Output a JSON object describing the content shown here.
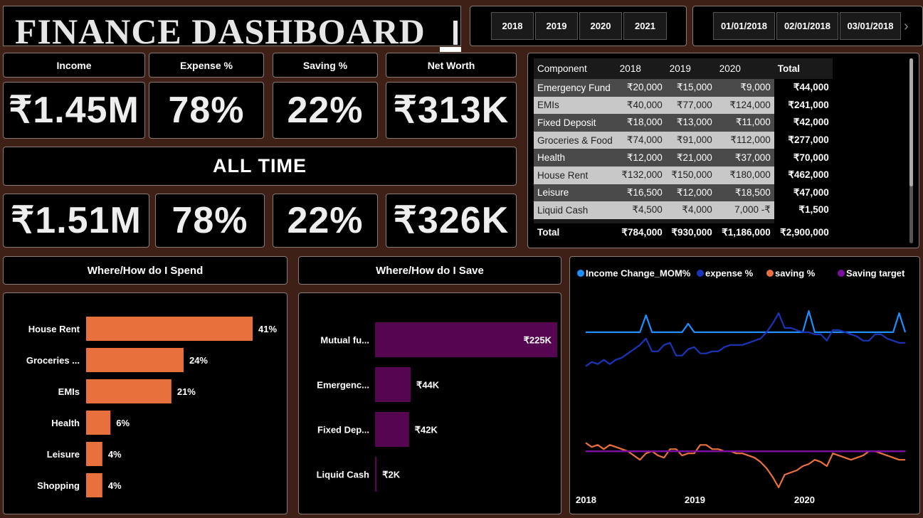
{
  "header": {
    "title": "FINANCE DASHBOARD"
  },
  "year_slicer": [
    "2018",
    "2019",
    "2020",
    "2021"
  ],
  "date_slicer": [
    "01/01/2018",
    "02/01/2018",
    "03/01/2018"
  ],
  "kpi_headers": [
    "Income",
    "Expense %",
    "Saving %",
    "Net Worth"
  ],
  "kpi_selected": [
    "₹1.45M",
    "78%",
    "22%",
    "₹313K"
  ],
  "alltime_label": "ALL TIME",
  "kpi_alltime": [
    "₹1.51M",
    "78%",
    "22%",
    "₹326K"
  ],
  "table": {
    "headers": [
      "Component",
      "2018",
      "2019",
      "2020",
      "Total"
    ],
    "rows": [
      [
        "Emergency Fund",
        "₹20,000",
        "₹15,000",
        "₹9,000",
        "₹44,000"
      ],
      [
        "EMIs",
        "₹40,000",
        "₹77,000",
        "₹124,000",
        "₹241,000"
      ],
      [
        "Fixed Deposit",
        "₹18,000",
        "₹13,000",
        "₹11,000",
        "₹42,000"
      ],
      [
        "Groceries & Food",
        "₹74,000",
        "₹91,000",
        "₹112,000",
        "₹277,000"
      ],
      [
        "Health",
        "₹12,000",
        "₹21,000",
        "₹37,000",
        "₹70,000"
      ],
      [
        "House Rent",
        "₹132,000",
        "₹150,000",
        "₹180,000",
        "₹462,000"
      ],
      [
        "Leisure",
        "₹16,500",
        "₹12,000",
        "₹18,500",
        "₹47,000"
      ],
      [
        "Liquid Cash",
        "₹4,500",
        "₹4,000",
        "7,000 -₹",
        "₹1,500"
      ]
    ],
    "total": [
      "Total",
      "₹784,000",
      "₹930,000",
      "₹1,186,000",
      "₹2,900,000"
    ]
  },
  "spend_title": "Where/How do I Spend",
  "save_title": "Where/How do I Save",
  "colors": {
    "spend_bar": "#e8703c",
    "save_bar": "#560550",
    "income": "#1e8fff",
    "expense": "#1a34b8",
    "saving": "#e8703c",
    "target": "#7a0f9e"
  },
  "chart_data": [
    {
      "type": "bar",
      "orientation": "horizontal",
      "title": "Where/How do I Spend",
      "categories": [
        "House Rent",
        "Groceries ...",
        "EMIs",
        "Health",
        "Leisure",
        "Shopping"
      ],
      "values": [
        41,
        24,
        21,
        6,
        4,
        4
      ],
      "labels": [
        "41%",
        "24%",
        "21%",
        "6%",
        "4%",
        "4%"
      ]
    },
    {
      "type": "bar",
      "orientation": "horizontal",
      "title": "Where/How do I Save",
      "categories": [
        "Mutual fu...",
        "Emergenc...",
        "Fixed Dep...",
        "Liquid Cash"
      ],
      "values": [
        225,
        44,
        42,
        2
      ],
      "labels": [
        "₹225K",
        "₹44K",
        "₹42K",
        "₹2K"
      ]
    },
    {
      "type": "line",
      "legend_position": "top-left",
      "x_ticks": [
        "2018",
        "2019",
        "2020"
      ],
      "series": [
        {
          "name": "Income Change_MOM%",
          "values": [
            0,
            0,
            0,
            0,
            0,
            0,
            0,
            0,
            0,
            0,
            8,
            0,
            0,
            0,
            0,
            0,
            0,
            4,
            0,
            0,
            0,
            0,
            0,
            0,
            0,
            0,
            0,
            0,
            0,
            0,
            0,
            0,
            0,
            0,
            0,
            0,
            0,
            10,
            0,
            0,
            0,
            0,
            0,
            0,
            0,
            0,
            0,
            0,
            0,
            0,
            0,
            0,
            9,
            0
          ]
        },
        {
          "name": "expense %",
          "values": [
            -16,
            -14,
            -15,
            -13,
            -15,
            -13,
            -12,
            -10,
            -8,
            -6,
            -3,
            -9,
            -9,
            -6,
            -5,
            -11,
            -11,
            -8,
            -7,
            -10,
            -10,
            -9,
            -9,
            -7,
            -6,
            -6,
            -6,
            -5,
            -4,
            -3,
            0,
            4,
            9,
            2,
            2,
            1,
            0,
            0,
            -1,
            -1,
            -4,
            1,
            1,
            0,
            -1,
            -2,
            -4,
            -4,
            -1,
            -1,
            -3,
            -4,
            -5,
            -5
          ]
        },
        {
          "name": "saving %",
          "values": [
            -52,
            -54,
            -53,
            -55,
            -53,
            -54,
            -55,
            -56,
            -58,
            -60,
            -57,
            -56,
            -58,
            -59,
            -55,
            -55,
            -58,
            -57,
            -57,
            -53,
            -53,
            -55,
            -55,
            -56,
            -56,
            -57,
            -57,
            -58,
            -59,
            -61,
            -64,
            -68,
            -73,
            -67,
            -66,
            -65,
            -63,
            -62,
            -60,
            -61,
            -63,
            -57,
            -58,
            -59,
            -60,
            -59,
            -58,
            -56,
            -56,
            -57,
            -58,
            -59,
            -60,
            -60
          ]
        },
        {
          "name": "Saving target",
          "values": [
            -56,
            -56,
            -56,
            -56,
            -56,
            -56,
            -56,
            -56,
            -56,
            -56,
            -56,
            -56,
            -56,
            -56,
            -56,
            -56,
            -56,
            -56,
            -56,
            -56,
            -56,
            -56,
            -56,
            -56,
            -56,
            -56,
            -56,
            -56,
            -56,
            -56,
            -56,
            -56,
            -56,
            -56,
            -56,
            -56,
            -56,
            -56,
            -56,
            -56,
            -56,
            -56,
            -56,
            -56,
            -56,
            -56,
            -56,
            -56,
            -56,
            -56,
            -56,
            -56,
            -56,
            -56
          ]
        }
      ]
    }
  ]
}
